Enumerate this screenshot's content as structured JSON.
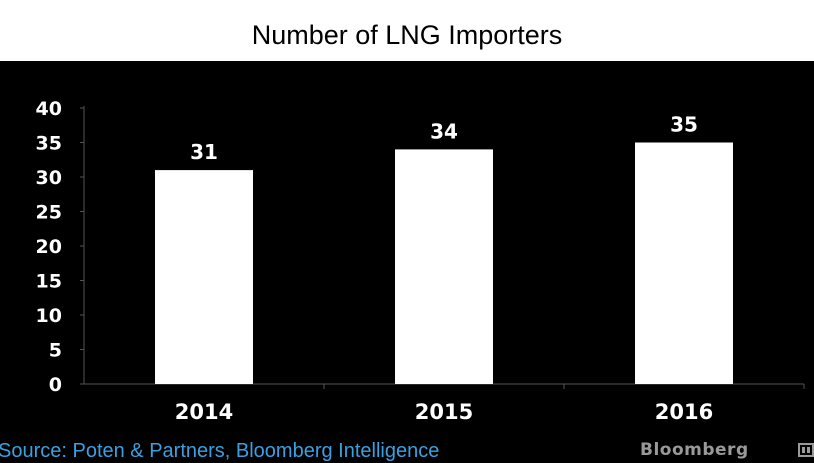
{
  "chart_data": {
    "type": "bar",
    "title": "Number of LNG Importers",
    "categories": [
      "2014",
      "2015",
      "2016"
    ],
    "values": [
      31,
      34,
      35
    ],
    "data_labels": [
      "31",
      "34",
      "35"
    ],
    "ylim": [
      0,
      40
    ],
    "yticks": [
      "0",
      "5",
      "10",
      "15",
      "20",
      "25",
      "30",
      "35",
      "40"
    ],
    "xlabel": "",
    "ylabel": "",
    "grid": false
  },
  "source": "Source: Poten & Partners, Bloomberg Intelligence",
  "brand": "Bloomberg",
  "colors": {
    "background": "#000000",
    "title_band": "#ffffff",
    "bar": "#ffffff",
    "axis": "#555555",
    "text": "#ffffff",
    "source": "#3aa0e0",
    "brand": "#9a9a9a"
  },
  "icons": {
    "brand_mark": "terminal-icon"
  }
}
